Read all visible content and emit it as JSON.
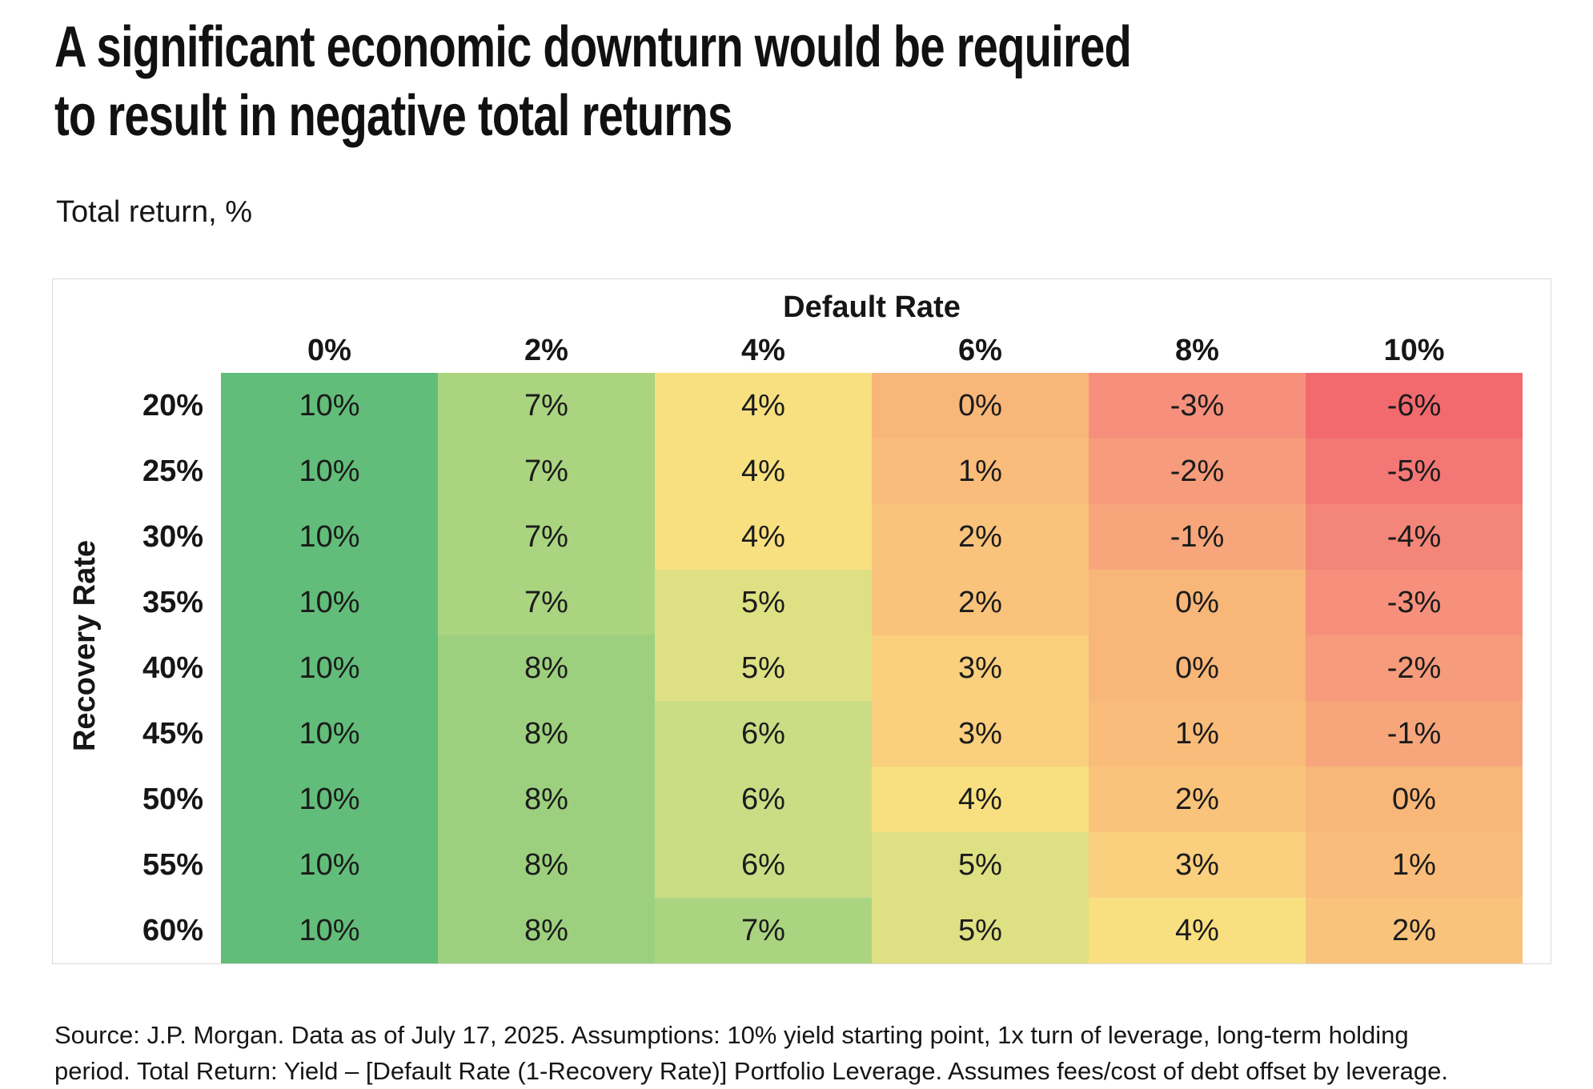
{
  "title": {
    "line1": "A significant economic downturn would be required",
    "line2": "to result in negative total returns"
  },
  "subtitle": "Total return, %",
  "chart_data": {
    "type": "heatmap",
    "title": "A significant economic downturn would be required to result in negative total returns",
    "subtitle": "Total return, %",
    "xlabel": "Default Rate",
    "ylabel": "Recovery Rate",
    "x_categories": [
      "0%",
      "2%",
      "4%",
      "6%",
      "8%",
      "10%"
    ],
    "y_categories": [
      "20%",
      "25%",
      "30%",
      "35%",
      "40%",
      "45%",
      "50%",
      "55%",
      "60%"
    ],
    "cell_value_suffix": "%",
    "matrix": [
      [
        10,
        7,
        4,
        0,
        -3,
        -6
      ],
      [
        10,
        7,
        4,
        1,
        -2,
        -5
      ],
      [
        10,
        7,
        4,
        2,
        -1,
        -4
      ],
      [
        10,
        7,
        5,
        2,
        0,
        -3
      ],
      [
        10,
        8,
        5,
        3,
        0,
        -2
      ],
      [
        10,
        8,
        6,
        3,
        1,
        -1
      ],
      [
        10,
        8,
        6,
        4,
        2,
        0
      ],
      [
        10,
        8,
        6,
        5,
        3,
        1
      ],
      [
        10,
        8,
        7,
        5,
        4,
        2
      ]
    ],
    "colormap": {
      "10": "#62BD7A",
      "8": "#9DD07E",
      "7": "#AAD480",
      "6": "#CBDC85",
      "5": "#DEE084",
      "4": "#F8E081",
      "3": "#FACF7D",
      "2": "#FAC37B",
      "1": "#F9BC7A",
      "0": "#F8B678",
      "-1": "#F7A67C",
      "-2": "#F69B7B",
      "-3": "#F6907C",
      "-4": "#F48579",
      "-5": "#F37775",
      "-6": "#F26A6E"
    }
  },
  "source": {
    "line1": "Source: J.P. Morgan. Data as of July 17, 2025. Assumptions: 10% yield starting point, 1x turn of leverage, long-term holding",
    "line2": "period. Total Return: Yield – [Default Rate (1-Recovery Rate)] Portfolio Leverage. Assumes fees/cost of debt offset by leverage."
  }
}
